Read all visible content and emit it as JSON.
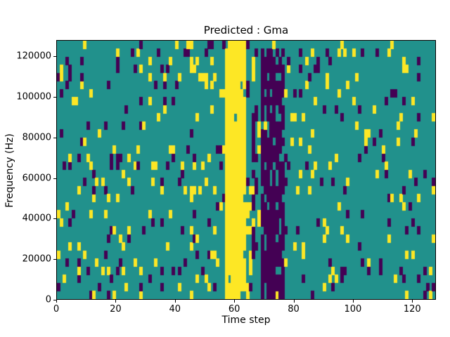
{
  "figure": {
    "background": "#ffffff"
  },
  "chart_data": {
    "type": "heatmap",
    "title": "Predicted : Gma",
    "xlabel": "Time step",
    "ylabel": "Frequency (Hz)",
    "xlim": [
      0,
      128
    ],
    "ylim": [
      0,
      128000
    ],
    "xticks": [
      0,
      20,
      40,
      60,
      80,
      100,
      120
    ],
    "yticks": [
      0,
      20000,
      40000,
      60000,
      80000,
      100000,
      120000
    ],
    "grid": {
      "cols": 128,
      "rows": 32
    },
    "colormap": {
      "name": "viridis-3-level",
      "high": "#fde725",
      "mid": "#21918c",
      "low": "#440154"
    },
    "legend": null,
    "grid_lines": false,
    "noise": {
      "high": 0.05,
      "low": 0.045
    },
    "bands": [
      {
        "x0": 57,
        "x1": 64,
        "y0": 2000,
        "y1": 128000,
        "value": "high",
        "fill_prob": 0.93
      },
      {
        "x0": 64,
        "x1": 66,
        "y0": 2000,
        "y1": 56000,
        "value": "high",
        "fill_prob": 0.35
      },
      {
        "x0": 66,
        "x1": 68,
        "y0": 16000,
        "y1": 96000,
        "value": "low",
        "fill_prob": 0.55
      },
      {
        "x0": 69,
        "x1": 77,
        "y0": 2000,
        "y1": 124000,
        "value": "low",
        "fill_prob": 0.78
      },
      {
        "x0": 71,
        "x1": 74,
        "y0": 2000,
        "y1": 30000,
        "value": "low",
        "fill_prob": 0.95
      }
    ],
    "render_seed": 12
  }
}
